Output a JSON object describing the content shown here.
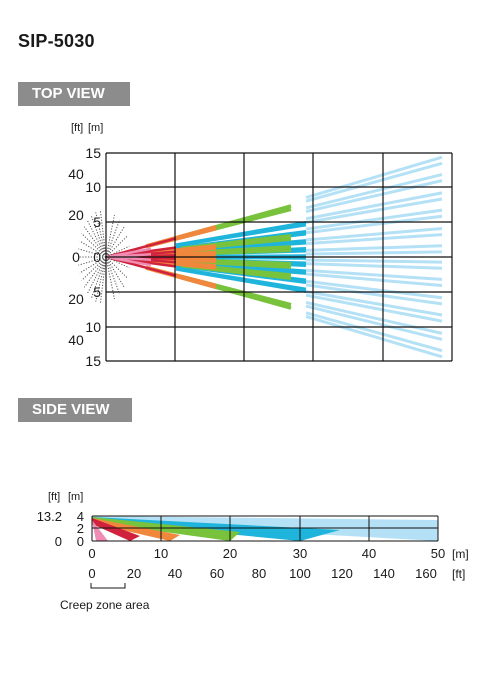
{
  "model": "SIP-5030",
  "top_view": {
    "tab_label": "TOP VIEW",
    "unit_ft": "[ft]",
    "unit_m": "[m]",
    "ft_ticks": [
      "40",
      "20",
      "0",
      "20",
      "40"
    ],
    "m_ticks": [
      "15",
      "10",
      "5",
      "0",
      "5",
      "10",
      "15"
    ]
  },
  "side_view": {
    "tab_label": "SIDE VIEW",
    "unit_ft": "[ft]",
    "unit_m": "[m]",
    "ft_ticks_y": [
      "13.2",
      "0"
    ],
    "m_ticks_y": [
      "4",
      "2",
      "0"
    ],
    "m_ticks_x": [
      "0",
      "10",
      "20",
      "30",
      "40",
      "50"
    ],
    "m_unit_x": "[m]",
    "ft_ticks_x": [
      "0",
      "20",
      "40",
      "60",
      "80",
      "100",
      "120",
      "140",
      "160"
    ],
    "ft_unit_x": "[ft]",
    "creep_label": "Creep zone area"
  },
  "colors": {
    "grid": "#111111",
    "near_red": "#d0223c",
    "pink": "#f08cb4",
    "orange": "#f0873c",
    "green": "#78c23c",
    "cyan": "#1eb4dc",
    "light_blue": "#b4e1f5",
    "creep_dots": "#555555",
    "tab_bg": "#8c8c8c"
  }
}
